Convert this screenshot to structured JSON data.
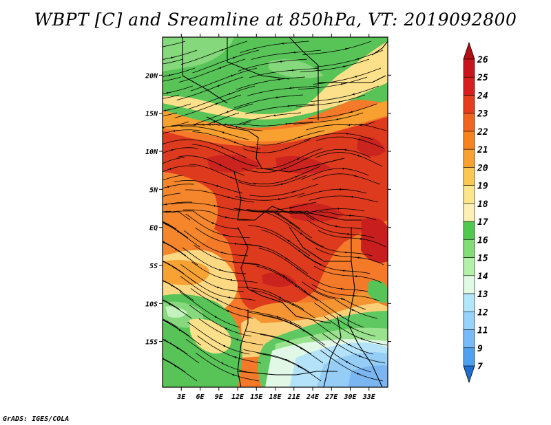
{
  "title": "WBPT [C] and Sreamline at 850hPa, VT: 2019092800",
  "credit": "GrADS: IGES/COLA",
  "map": {
    "lon_range": [
      0,
      36
    ],
    "lat_range": [
      -21,
      25
    ],
    "lat_ticks": [
      {
        "value": 20,
        "label": "20N"
      },
      {
        "value": 15,
        "label": "15N"
      },
      {
        "value": 10,
        "label": "10N"
      },
      {
        "value": 5,
        "label": "5N"
      },
      {
        "value": 0,
        "label": "EQ"
      },
      {
        "value": -5,
        "label": "5S"
      },
      {
        "value": -10,
        "label": "10S"
      },
      {
        "value": -15,
        "label": "15S"
      }
    ],
    "lon_ticks": [
      {
        "value": 3,
        "label": "3E"
      },
      {
        "value": 6,
        "label": "6E"
      },
      {
        "value": 9,
        "label": "9E"
      },
      {
        "value": 12,
        "label": "12E"
      },
      {
        "value": 15,
        "label": "15E"
      },
      {
        "value": 18,
        "label": "18E"
      },
      {
        "value": 21,
        "label": "21E"
      },
      {
        "value": 24,
        "label": "24E"
      },
      {
        "value": 27,
        "label": "27E"
      },
      {
        "value": 30,
        "label": "30E"
      },
      {
        "value": 33,
        "label": "33E"
      }
    ]
  },
  "colorbar": {
    "levels": [
      {
        "label": "26",
        "color": "#c8141e"
      },
      {
        "label": "25",
        "color": "#d61e1e"
      },
      {
        "label": "24",
        "color": "#e63c1e"
      },
      {
        "label": "23",
        "color": "#f0641e"
      },
      {
        "label": "22",
        "color": "#f8821e"
      },
      {
        "label": "21",
        "color": "#f8a030"
      },
      {
        "label": "20",
        "color": "#fac850"
      },
      {
        "label": "19",
        "color": "#fce68c"
      },
      {
        "label": "18",
        "color": "#fcf0b4"
      },
      {
        "label": "17",
        "color": "#50c850"
      },
      {
        "label": "16",
        "color": "#82dc78"
      },
      {
        "label": "15",
        "color": "#b4f0aa"
      },
      {
        "label": "14",
        "color": "#e1fae6"
      },
      {
        "label": "13",
        "color": "#b4e6fa"
      },
      {
        "label": "12",
        "color": "#96d2fa"
      },
      {
        "label": "11",
        "color": "#78b9fa"
      },
      {
        "label": "9",
        "color": "#50a0f0"
      },
      {
        "label": "7",
        "color": "#3c87e6"
      }
    ],
    "top_color": "#b40f14",
    "bottom_color": "#1e6ed2"
  }
}
